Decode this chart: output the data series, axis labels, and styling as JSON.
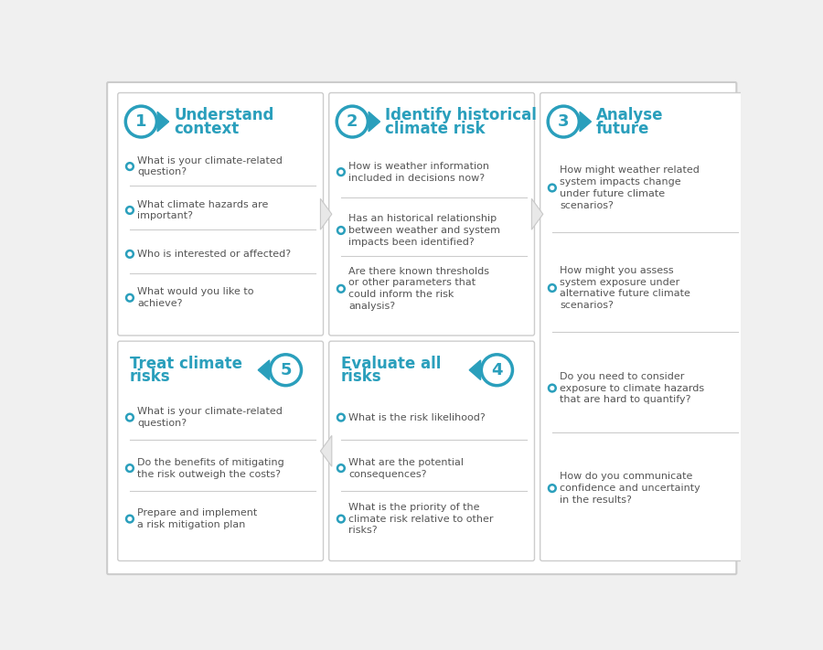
{
  "teal": "#2a9fbc",
  "bg_color": "#f0f0f0",
  "card_bg": "#ffffff",
  "card_border": "#cccccc",
  "text_dark": "#555555",
  "separator": "#cccccc",
  "outer_border": "#cccccc",
  "cells": [
    {
      "id": 1,
      "title_lines": [
        "Understand",
        "context"
      ],
      "number": "1",
      "arrow_dir": "right",
      "row": 0,
      "col": 0,
      "items": [
        "What is your climate-related\nquestion?",
        "What climate hazards are\nimportant?",
        "Who is interested or affected?",
        "What would you like to\nachieve?"
      ]
    },
    {
      "id": 2,
      "title_lines": [
        "Identify historical",
        "climate risk"
      ],
      "number": "2",
      "arrow_dir": "right",
      "row": 0,
      "col": 1,
      "items": [
        "How is weather information\nincluded in decisions now?",
        "Has an historical relationship\nbetween weather and system\nimpacts been identified?",
        "Are there known thresholds\nor other parameters that\ncould inform the risk\nanalysis?"
      ]
    },
    {
      "id": 3,
      "title_lines": [
        "Analyse",
        "future"
      ],
      "number": "3",
      "arrow_dir": "right",
      "row": 0,
      "col": 2,
      "items": [
        "How might weather related\nsystem impacts change\nunder future climate\nscenarios?",
        "How might you assess\nsystem exposure under\nalternative future climate\nscenarios?",
        "Do you need to consider\nexposure to climate hazards\nthat are hard to quantify?",
        "How do you communicate\nconfidence and uncertainty\nin the results?"
      ]
    },
    {
      "id": 5,
      "title_lines": [
        "Treat climate",
        "risks"
      ],
      "number": "5",
      "arrow_dir": "left",
      "row": 1,
      "col": 0,
      "items": [
        "What is your climate-related\nquestion?",
        "Do the benefits of mitigating\nthe risk outweigh the costs?",
        "Prepare and implement\na risk mitigation plan"
      ]
    },
    {
      "id": 4,
      "title_lines": [
        "Evaluate all",
        "risks"
      ],
      "number": "4",
      "arrow_dir": "left",
      "row": 1,
      "col": 1,
      "items": [
        "What is the risk likelihood?",
        "What are the potential\nconsequences?",
        "What is the priority of the\nclimate risk relative to other\nrisks?"
      ]
    }
  ]
}
